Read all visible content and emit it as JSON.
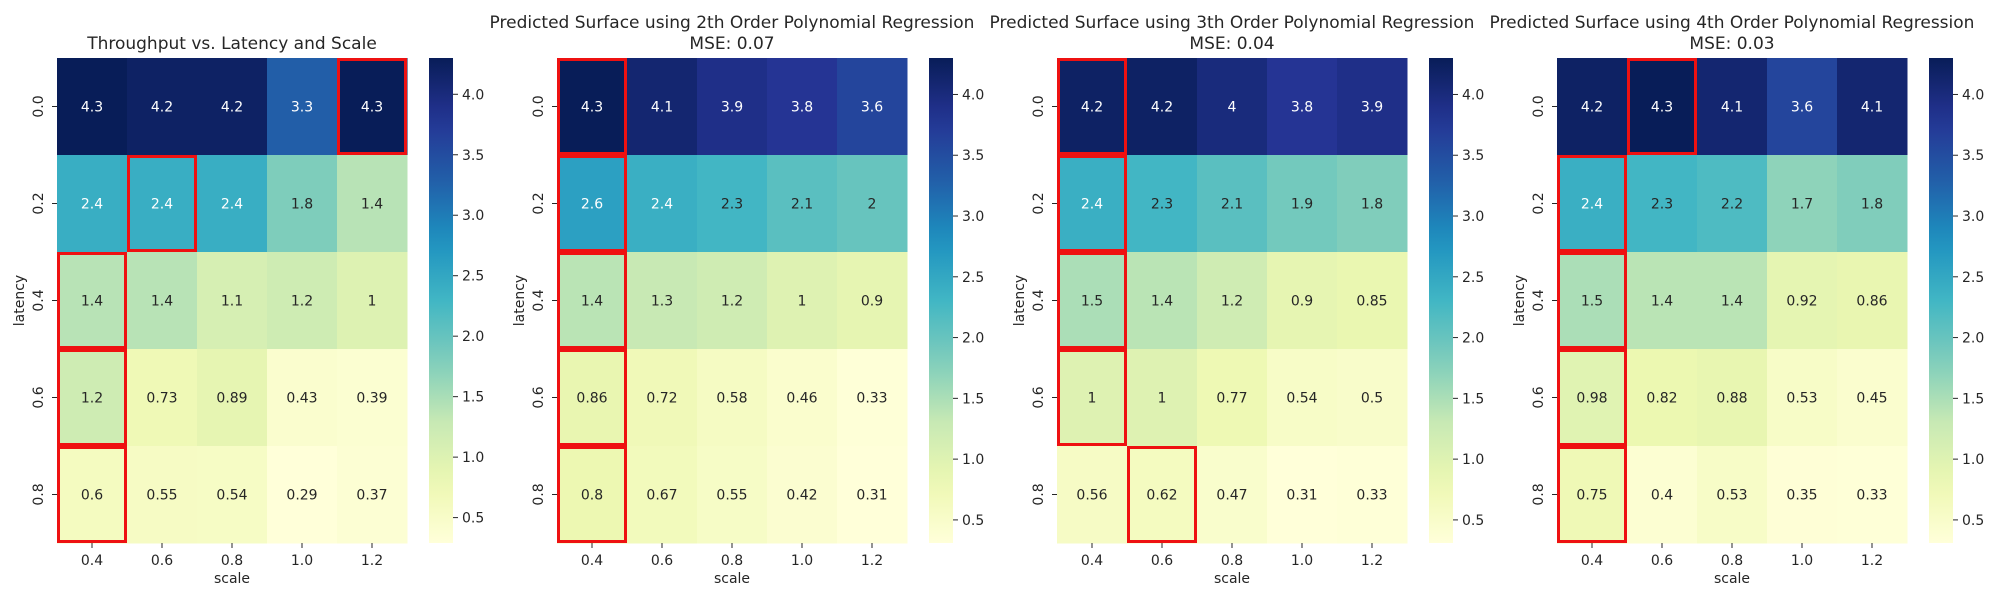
{
  "chart_data": [
    {
      "type": "heatmap",
      "title": "Throughput vs. Latency and Scale",
      "subtitle": "",
      "xlabel": "scale",
      "ylabel": "latency",
      "x": [
        "0.4",
        "0.6",
        "0.8",
        "1.0",
        "1.2"
      ],
      "y": [
        "0.0",
        "0.2",
        "0.4",
        "0.6",
        "0.8"
      ],
      "values": [
        [
          4.3,
          4.2,
          4.2,
          3.3,
          4.3
        ],
        [
          2.4,
          2.4,
          2.4,
          1.8,
          1.4
        ],
        [
          1.4,
          1.4,
          1.1,
          1.2,
          1
        ],
        [
          1.2,
          0.73,
          0.89,
          0.43,
          0.39
        ],
        [
          0.6,
          0.55,
          0.54,
          0.29,
          0.37
        ]
      ],
      "highlighted_cells": [
        [
          0,
          4
        ],
        [
          1,
          1
        ],
        [
          2,
          0
        ],
        [
          3,
          0
        ],
        [
          4,
          0
        ]
      ],
      "colormap": "YlGnBu",
      "colorbar_ticks": [
        0.5,
        1.0,
        1.5,
        2.0,
        2.5,
        3.0,
        3.5,
        4.0
      ],
      "color_range": [
        0.29,
        4.3
      ]
    },
    {
      "type": "heatmap",
      "title": "Predicted Surface using 2th Order Polynomial Regression",
      "subtitle": "MSE: 0.07",
      "xlabel": "scale",
      "ylabel": "latency",
      "x": [
        "0.4",
        "0.6",
        "0.8",
        "1.0",
        "1.2"
      ],
      "y": [
        "0.0",
        "0.2",
        "0.4",
        "0.6",
        "0.8"
      ],
      "values": [
        [
          4.3,
          4.1,
          3.9,
          3.8,
          3.6
        ],
        [
          2.6,
          2.4,
          2.3,
          2.1,
          2
        ],
        [
          1.4,
          1.3,
          1.2,
          1,
          0.9
        ],
        [
          0.86,
          0.72,
          0.58,
          0.46,
          0.33
        ],
        [
          0.8,
          0.67,
          0.55,
          0.42,
          0.31
        ]
      ],
      "highlighted_cells": [
        [
          0,
          0
        ],
        [
          1,
          0
        ],
        [
          2,
          0
        ],
        [
          3,
          0
        ],
        [
          4,
          0
        ]
      ],
      "colormap": "YlGnBu",
      "colorbar_ticks": [
        0.5,
        1.0,
        1.5,
        2.0,
        2.5,
        3.0,
        3.5,
        4.0
      ],
      "color_range": [
        0.31,
        4.3
      ]
    },
    {
      "type": "heatmap",
      "title": "Predicted Surface using 3th Order Polynomial Regression",
      "subtitle": "MSE: 0.04",
      "xlabel": "scale",
      "ylabel": "latency",
      "x": [
        "0.4",
        "0.6",
        "0.8",
        "1.0",
        "1.2"
      ],
      "y": [
        "0.0",
        "0.2",
        "0.4",
        "0.6",
        "0.8"
      ],
      "values": [
        [
          4.2,
          4.2,
          4,
          3.8,
          3.9
        ],
        [
          2.4,
          2.3,
          2.1,
          1.9,
          1.8
        ],
        [
          1.5,
          1.4,
          1.2,
          0.9,
          0.85
        ],
        [
          1,
          1,
          0.77,
          0.54,
          0.5
        ],
        [
          0.56,
          0.62,
          0.47,
          0.31,
          0.33
        ]
      ],
      "highlighted_cells": [
        [
          0,
          0
        ],
        [
          1,
          0
        ],
        [
          2,
          0
        ],
        [
          3,
          0
        ],
        [
          4,
          1
        ]
      ],
      "colormap": "YlGnBu",
      "colorbar_ticks": [
        0.5,
        1.0,
        1.5,
        2.0,
        2.5,
        3.0,
        3.5,
        4.0
      ],
      "color_range": [
        0.31,
        4.3
      ]
    },
    {
      "type": "heatmap",
      "title": "Predicted Surface using 4th Order Polynomial Regression",
      "subtitle": "MSE: 0.03",
      "xlabel": "scale",
      "ylabel": "latency",
      "x": [
        "0.4",
        "0.6",
        "0.8",
        "1.0",
        "1.2"
      ],
      "y": [
        "0.0",
        "0.2",
        "0.4",
        "0.6",
        "0.8"
      ],
      "values": [
        [
          4.2,
          4.3,
          4.1,
          3.6,
          4.1
        ],
        [
          2.4,
          2.3,
          2.2,
          1.7,
          1.8
        ],
        [
          1.5,
          1.4,
          1.4,
          0.92,
          0.86
        ],
        [
          0.98,
          0.82,
          0.88,
          0.53,
          0.45
        ],
        [
          0.75,
          0.4,
          0.53,
          0.35,
          0.33
        ]
      ],
      "highlighted_cells": [
        [
          0,
          1
        ],
        [
          1,
          0
        ],
        [
          2,
          0
        ],
        [
          3,
          0
        ],
        [
          4,
          0
        ]
      ],
      "colormap": "YlGnBu",
      "colorbar_ticks": [
        0.5,
        1.0,
        1.5,
        2.0,
        2.5,
        3.0,
        3.5,
        4.0
      ],
      "color_range": [
        0.31,
        4.3
      ]
    }
  ]
}
